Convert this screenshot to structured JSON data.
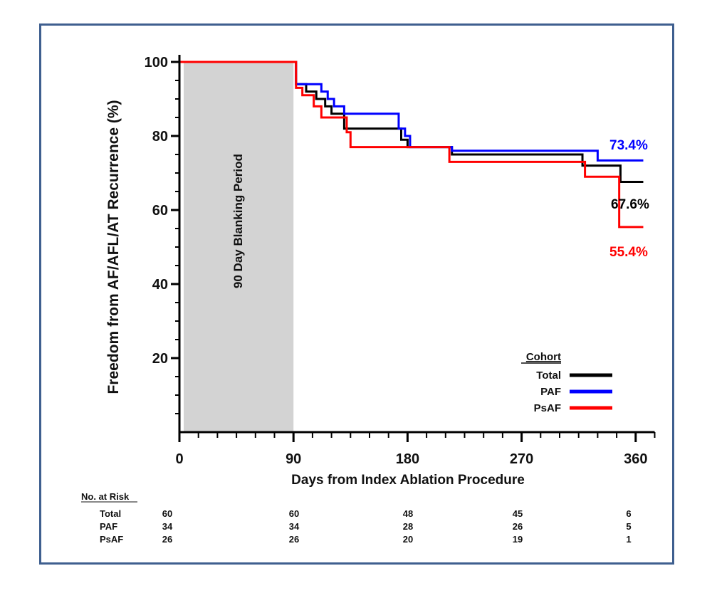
{
  "chart_data": {
    "type": "line",
    "step": true,
    "xlabel": "Days from Index Ablation Procedure",
    "ylabel": "Freedom from AF/AFL/AT Recurrence (%)",
    "xlim": [
      0,
      375
    ],
    "ylim": [
      0,
      100
    ],
    "x_ticks": [
      0,
      90,
      180,
      270,
      360
    ],
    "y_ticks": [
      20,
      40,
      60,
      80,
      100
    ],
    "shaded_region": {
      "x": [
        0,
        90
      ],
      "label": "90 Day Blanking Period",
      "color": "#d3d3d3"
    },
    "legend": {
      "title": "Cohort",
      "position": "bottom-right"
    },
    "series": [
      {
        "name": "Total",
        "color": "#000000",
        "end_label": "67.6%",
        "points": [
          [
            0,
            100
          ],
          [
            90,
            100
          ],
          [
            92,
            94
          ],
          [
            100,
            92
          ],
          [
            108,
            90
          ],
          [
            115,
            88
          ],
          [
            120,
            86
          ],
          [
            130,
            82
          ],
          [
            172,
            82
          ],
          [
            175,
            79
          ],
          [
            180,
            77
          ],
          [
            210,
            77
          ],
          [
            215,
            75
          ],
          [
            312,
            75
          ],
          [
            318,
            72
          ],
          [
            346,
            72
          ],
          [
            348,
            67.6
          ],
          [
            366,
            67.6
          ]
        ]
      },
      {
        "name": "PAF",
        "color": "#0000ff",
        "end_label": "73.4%",
        "points": [
          [
            0,
            100
          ],
          [
            90,
            100
          ],
          [
            92,
            94
          ],
          [
            110,
            94
          ],
          [
            112,
            92
          ],
          [
            117,
            90
          ],
          [
            122,
            88
          ],
          [
            130,
            86
          ],
          [
            171,
            86
          ],
          [
            173,
            82
          ],
          [
            178,
            80
          ],
          [
            182,
            77
          ],
          [
            212,
            77
          ],
          [
            215,
            76
          ],
          [
            327,
            76
          ],
          [
            330,
            73.4
          ],
          [
            366,
            73.4
          ]
        ]
      },
      {
        "name": "PsAF",
        "color": "#ff0000",
        "end_label": "55.4%",
        "points": [
          [
            0,
            100
          ],
          [
            90,
            100
          ],
          [
            92,
            93
          ],
          [
            97,
            91
          ],
          [
            106,
            88
          ],
          [
            112,
            85
          ],
          [
            130,
            85
          ],
          [
            132,
            81
          ],
          [
            135,
            77
          ],
          [
            212,
            77
          ],
          [
            213,
            73
          ],
          [
            318,
            73
          ],
          [
            320,
            69
          ],
          [
            345,
            69
          ],
          [
            347,
            55.4
          ],
          [
            366,
            55.4
          ]
        ]
      }
    ],
    "risk_table": {
      "title": "No. at Risk",
      "rows": [
        {
          "label": "Total",
          "values": [
            "60",
            "60",
            "48",
            "45",
            "6"
          ]
        },
        {
          "label": "PAF",
          "values": [
            "34",
            "34",
            "28",
            "26",
            "5"
          ]
        },
        {
          "label": "PsAF",
          "values": [
            "26",
            "26",
            "20",
            "19",
            "1"
          ]
        }
      ]
    }
  }
}
